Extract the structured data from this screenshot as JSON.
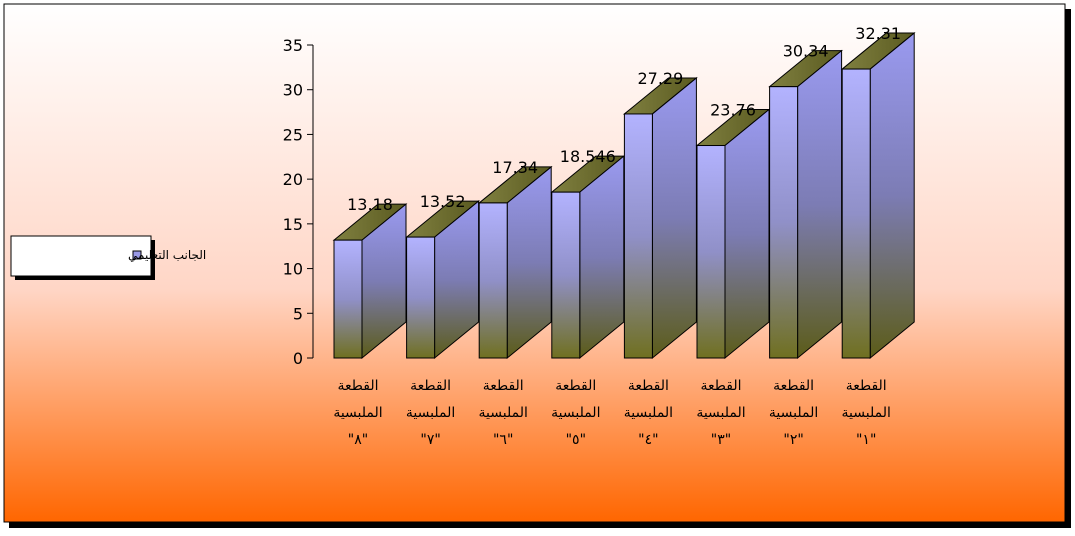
{
  "chart_data": {
    "type": "bar",
    "style": "3d-column",
    "categories": [
      [
        "القطعة",
        "الملبسية",
        "\"٨\""
      ],
      [
        "القطعة",
        "الملبسية",
        "\"٧\""
      ],
      [
        "القطعة",
        "الملبسية",
        "\"٦\""
      ],
      [
        "القطعة",
        "الملبسية",
        "\"٥\""
      ],
      [
        "القطعة",
        "الملبسية",
        "\"٤\""
      ],
      [
        "القطعة",
        "الملبسية",
        "\"٣\""
      ],
      [
        "القطعة",
        "الملبسية",
        "\"٢\""
      ],
      [
        "القطعة",
        "الملبسية",
        "\"١\""
      ]
    ],
    "series": [
      {
        "name": "الجانب التعليمي",
        "values": [
          13.18,
          13.52,
          17.34,
          18.546,
          27.29,
          23.76,
          30.34,
          32.31
        ],
        "labels": [
          "13.18",
          "13.52",
          "17.34",
          "18.546",
          "27.29",
          "23.76",
          "30.34",
          "32.31"
        ]
      }
    ],
    "y_ticks": [
      "0",
      "5",
      "10",
      "15",
      "20",
      "25",
      "30",
      "35"
    ],
    "ylim": [
      0,
      35
    ],
    "grid": false,
    "legend_position": "left",
    "colors": {
      "bar_top": "#b3b3ff",
      "bar_bottom": "#707020",
      "bg_top": "#ffffff",
      "bg_bottom": "#ff6600",
      "border": "#000000"
    }
  }
}
